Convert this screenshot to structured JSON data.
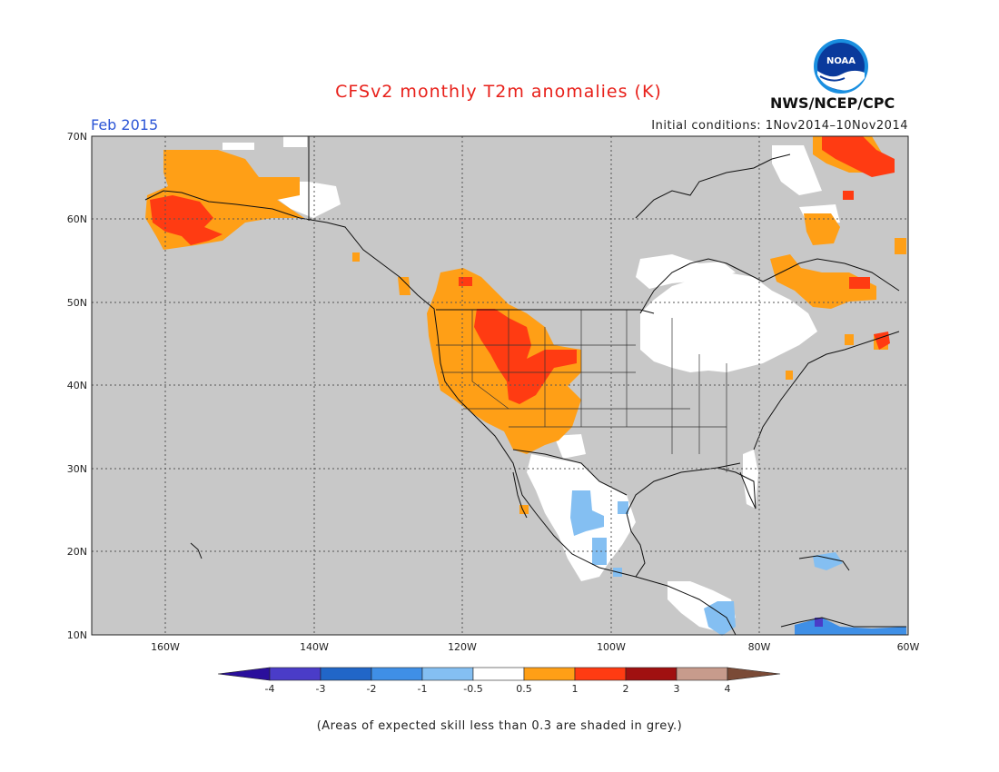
{
  "title": "CFSv2 monthly T2m anomalies (K)",
  "month": "Feb 2015",
  "initial_conditions": "Initial conditions: 1Nov2014–10Nov2014",
  "organization": "NWS/NCEP/CPC",
  "logo_text": "NOAA",
  "footnote": "(Areas of expected skill less than 0.3 are shaded in grey.)",
  "map": {
    "lat_labels": [
      "70N",
      "60N",
      "50N",
      "40N",
      "30N",
      "20N",
      "10N"
    ],
    "lon_labels": [
      "160W",
      "140W",
      "120W",
      "100W",
      "80W",
      "60W"
    ],
    "lat_range": [
      10,
      70
    ],
    "lon_range": [
      -170,
      -60
    ]
  },
  "legend": {
    "tick_labels": [
      "-4",
      "-3",
      "-2",
      "-1",
      "-0.5",
      "0.5",
      "1",
      "2",
      "3",
      "4"
    ],
    "colors": [
      "#2a0f9c",
      "#4a3cc8",
      "#2166c8",
      "#3f8fe6",
      "#84bff2",
      "#ffffff",
      "#ff9f16",
      "#ff3b12",
      "#a01010",
      "#c79b8c",
      "#7a4a36"
    ]
  },
  "colors": {
    "grey": "#c8c8c8",
    "title": "#e8201a",
    "month": "#2b55d6"
  }
}
